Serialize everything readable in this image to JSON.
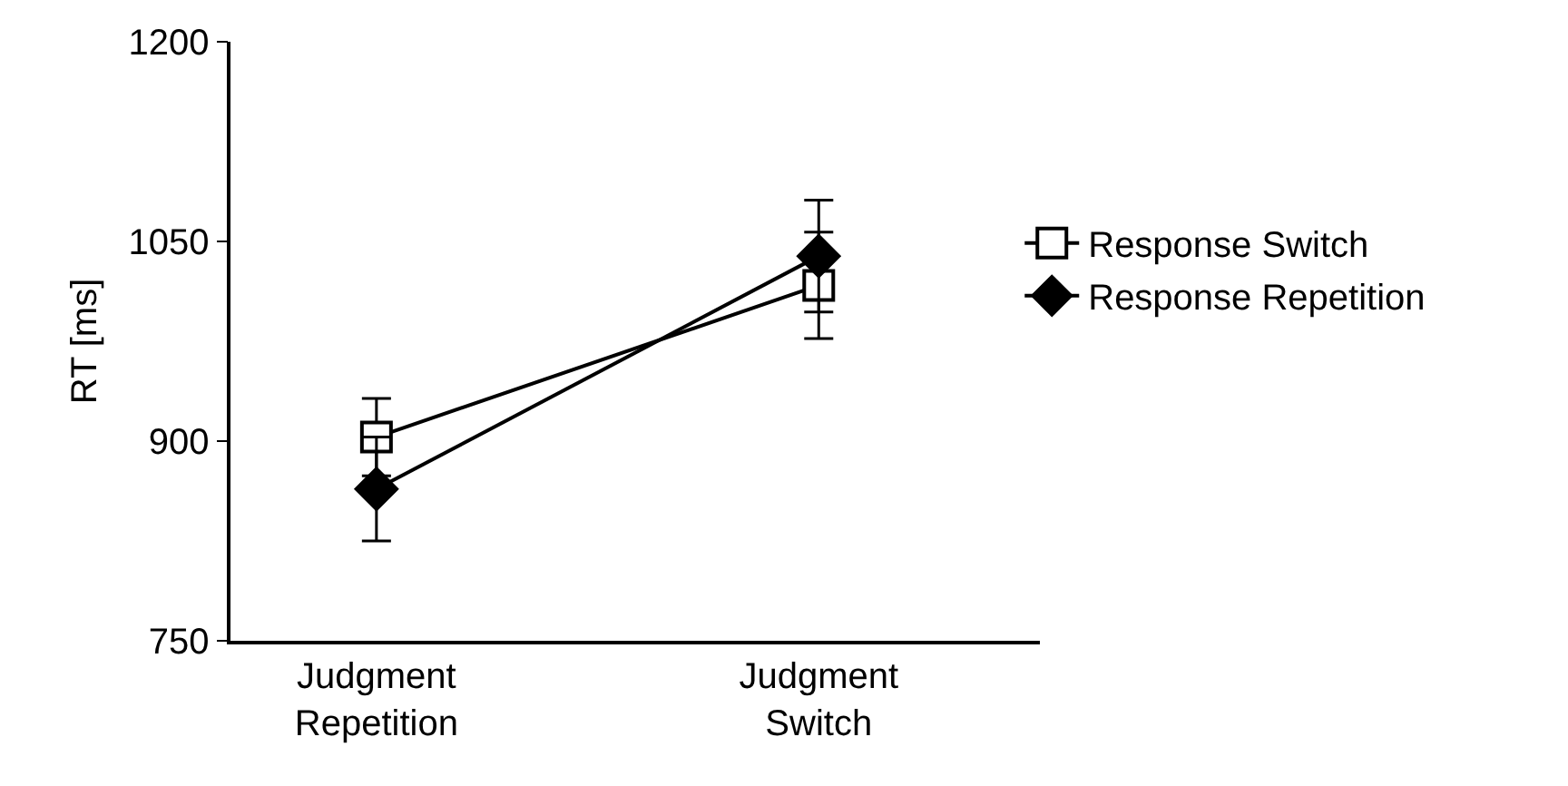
{
  "chart_data": {
    "type": "line",
    "ylabel": "RT [ms]",
    "categories": [
      "Judgment\nRepetition",
      "Judgment\nSwitch"
    ],
    "series": [
      {
        "name": "Response Switch",
        "color": "#000000",
        "marker": "square",
        "values": [
          903,
          1017
        ],
        "errors": [
          29,
          40
        ]
      },
      {
        "name": "Response Repetition",
        "color": "#000000",
        "marker": "diamond",
        "values": [
          864,
          1039
        ],
        "errors": [
          39,
          42
        ]
      }
    ],
    "ylim": [
      750,
      1200
    ],
    "yticks": [
      750,
      900,
      1050,
      1200
    ],
    "grid": false,
    "legend": "right",
    "line_style": "solid"
  }
}
